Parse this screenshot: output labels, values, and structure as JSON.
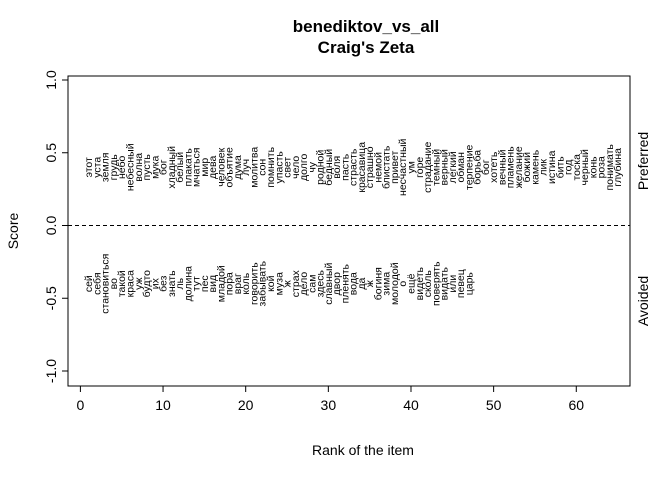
{
  "chart_data": {
    "type": "scatter",
    "title": "benediktov_vs_all",
    "subtitle": "Craig's Zeta",
    "xlabel": "Rank of the item",
    "ylabel": "Score",
    "xlim": [
      -1.5,
      66.5
    ],
    "ylim": [
      -1.0,
      1.0
    ],
    "x_ticks": [
      0,
      10,
      20,
      30,
      40,
      50,
      60
    ],
    "y_ticks": [
      -1.0,
      -0.5,
      0.0,
      0.5,
      1.0
    ],
    "x_tick_labels": [
      "0",
      "10",
      "20",
      "30",
      "40",
      "50",
      "60"
    ],
    "y_tick_labels": [
      "-1.0",
      "-0.5",
      "0.0",
      "0.5",
      "1.0"
    ],
    "reference_line": {
      "y": 0.0,
      "style": "dashed"
    },
    "right_axis_labels": {
      "top": "Preferred",
      "bottom": "Avoided"
    },
    "grid": false,
    "series": [
      {
        "name": "Preferred",
        "points": [
          {
            "x": 1,
            "y": 0.4,
            "label": "этот"
          },
          {
            "x": 2,
            "y": 0.4,
            "label": "уста"
          },
          {
            "x": 3,
            "y": 0.4,
            "label": "земля"
          },
          {
            "x": 4,
            "y": 0.4,
            "label": "грудь"
          },
          {
            "x": 5,
            "y": 0.4,
            "label": "небо"
          },
          {
            "x": 6,
            "y": 0.4,
            "label": "небесный"
          },
          {
            "x": 7,
            "y": 0.4,
            "label": "волна"
          },
          {
            "x": 8,
            "y": 0.4,
            "label": "пусть"
          },
          {
            "x": 9,
            "y": 0.4,
            "label": "мука"
          },
          {
            "x": 10,
            "y": 0.4,
            "label": "бог"
          },
          {
            "x": 11,
            "y": 0.4,
            "label": "хладный"
          },
          {
            "x": 12,
            "y": 0.4,
            "label": "белый"
          },
          {
            "x": 13,
            "y": 0.4,
            "label": "плакать"
          },
          {
            "x": 14,
            "y": 0.4,
            "label": "мчаться"
          },
          {
            "x": 15,
            "y": 0.4,
            "label": "мир"
          },
          {
            "x": 16,
            "y": 0.4,
            "label": "дева"
          },
          {
            "x": 17,
            "y": 0.4,
            "label": "человек"
          },
          {
            "x": 18,
            "y": 0.4,
            "label": "объятие"
          },
          {
            "x": 19,
            "y": 0.4,
            "label": "дума"
          },
          {
            "x": 20,
            "y": 0.4,
            "label": "луч"
          },
          {
            "x": 21,
            "y": 0.4,
            "label": "молитва"
          },
          {
            "x": 22,
            "y": 0.4,
            "label": "сон"
          },
          {
            "x": 23,
            "y": 0.4,
            "label": "помнить"
          },
          {
            "x": 24,
            "y": 0.4,
            "label": "упасть"
          },
          {
            "x": 25,
            "y": 0.4,
            "label": "свет"
          },
          {
            "x": 26,
            "y": 0.4,
            "label": "чело"
          },
          {
            "x": 27,
            "y": 0.4,
            "label": "долго"
          },
          {
            "x": 28,
            "y": 0.4,
            "label": "чу"
          },
          {
            "x": 29,
            "y": 0.4,
            "label": "родной"
          },
          {
            "x": 30,
            "y": 0.4,
            "label": "бедный"
          },
          {
            "x": 31,
            "y": 0.4,
            "label": "воля"
          },
          {
            "x": 32,
            "y": 0.4,
            "label": "пасть"
          },
          {
            "x": 33,
            "y": 0.4,
            "label": "страсть"
          },
          {
            "x": 34,
            "y": 0.4,
            "label": "красавица"
          },
          {
            "x": 35,
            "y": 0.4,
            "label": "страшно"
          },
          {
            "x": 36,
            "y": 0.4,
            "label": "немой"
          },
          {
            "x": 37,
            "y": 0.4,
            "label": "блистать"
          },
          {
            "x": 38,
            "y": 0.4,
            "label": "привет"
          },
          {
            "x": 39,
            "y": 0.4,
            "label": "несчастный"
          },
          {
            "x": 40,
            "y": 0.4,
            "label": "ум"
          },
          {
            "x": 41,
            "y": 0.4,
            "label": "горе"
          },
          {
            "x": 42,
            "y": 0.4,
            "label": "страдание"
          },
          {
            "x": 43,
            "y": 0.4,
            "label": "темный"
          },
          {
            "x": 44,
            "y": 0.4,
            "label": "верный"
          },
          {
            "x": 45,
            "y": 0.4,
            "label": "легкий"
          },
          {
            "x": 46,
            "y": 0.4,
            "label": "обман"
          },
          {
            "x": 47,
            "y": 0.4,
            "label": "терпение"
          },
          {
            "x": 48,
            "y": 0.4,
            "label": "борьба"
          },
          {
            "x": 49,
            "y": 0.4,
            "label": "бог"
          },
          {
            "x": 50,
            "y": 0.4,
            "label": "хотеть"
          },
          {
            "x": 51,
            "y": 0.4,
            "label": "вечный"
          },
          {
            "x": 52,
            "y": 0.4,
            "label": "пламень"
          },
          {
            "x": 53,
            "y": 0.4,
            "label": "желание"
          },
          {
            "x": 54,
            "y": 0.4,
            "label": "божий"
          },
          {
            "x": 55,
            "y": 0.4,
            "label": "камень"
          },
          {
            "x": 56,
            "y": 0.4,
            "label": "лик"
          },
          {
            "x": 57,
            "y": 0.4,
            "label": "истина"
          },
          {
            "x": 58,
            "y": 0.4,
            "label": "бить"
          },
          {
            "x": 59,
            "y": 0.4,
            "label": "год"
          },
          {
            "x": 60,
            "y": 0.4,
            "label": "тоска"
          },
          {
            "x": 61,
            "y": 0.4,
            "label": "черный"
          },
          {
            "x": 62,
            "y": 0.4,
            "label": "конь"
          },
          {
            "x": 63,
            "y": 0.4,
            "label": "роза"
          },
          {
            "x": 64,
            "y": 0.4,
            "label": "понимать"
          },
          {
            "x": 65,
            "y": 0.4,
            "label": "глубина"
          }
        ]
      },
      {
        "name": "Avoided",
        "points": [
          {
            "x": 1,
            "y": -0.4,
            "label": "сей"
          },
          {
            "x": 2,
            "y": -0.4,
            "label": "себя"
          },
          {
            "x": 3,
            "y": -0.4,
            "label": "становиться"
          },
          {
            "x": 4,
            "y": -0.4,
            "label": "во"
          },
          {
            "x": 5,
            "y": -0.4,
            "label": "такой"
          },
          {
            "x": 6,
            "y": -0.4,
            "label": "краса"
          },
          {
            "x": 7,
            "y": -0.4,
            "label": "уж"
          },
          {
            "x": 8,
            "y": -0.4,
            "label": "будто"
          },
          {
            "x": 9,
            "y": -0.4,
            "label": "их"
          },
          {
            "x": 10,
            "y": -0.4,
            "label": "без"
          },
          {
            "x": 11,
            "y": -0.4,
            "label": "знать"
          },
          {
            "x": 12,
            "y": -0.4,
            "label": "ль"
          },
          {
            "x": 13,
            "y": -0.4,
            "label": "долина"
          },
          {
            "x": 14,
            "y": -0.4,
            "label": "тут"
          },
          {
            "x": 15,
            "y": -0.4,
            "label": "пес"
          },
          {
            "x": 16,
            "y": -0.4,
            "label": "вид"
          },
          {
            "x": 17,
            "y": -0.4,
            "label": "младой"
          },
          {
            "x": 18,
            "y": -0.4,
            "label": "пора"
          },
          {
            "x": 19,
            "y": -0.4,
            "label": "враг"
          },
          {
            "x": 20,
            "y": -0.4,
            "label": "коль"
          },
          {
            "x": 21,
            "y": -0.4,
            "label": "говорить"
          },
          {
            "x": 22,
            "y": -0.4,
            "label": "забывать"
          },
          {
            "x": 23,
            "y": -0.4,
            "label": "кой"
          },
          {
            "x": 24,
            "y": -0.4,
            "label": "муза"
          },
          {
            "x": 25,
            "y": -0.4,
            "label": "ж"
          },
          {
            "x": 26,
            "y": -0.4,
            "label": "страх"
          },
          {
            "x": 27,
            "y": -0.4,
            "label": "дело"
          },
          {
            "x": 28,
            "y": -0.4,
            "label": "сам"
          },
          {
            "x": 29,
            "y": -0.4,
            "label": "здесь"
          },
          {
            "x": 30,
            "y": -0.4,
            "label": "славный"
          },
          {
            "x": 31,
            "y": -0.4,
            "label": "двор"
          },
          {
            "x": 32,
            "y": -0.4,
            "label": "пленять"
          },
          {
            "x": 33,
            "y": -0.4,
            "label": "вода"
          },
          {
            "x": 34,
            "y": -0.4,
            "label": "да"
          },
          {
            "x": 35,
            "y": -0.4,
            "label": "ж"
          },
          {
            "x": 36,
            "y": -0.4,
            "label": "богиня"
          },
          {
            "x": 37,
            "y": -0.4,
            "label": "зима"
          },
          {
            "x": 38,
            "y": -0.4,
            "label": "молодой"
          },
          {
            "x": 39,
            "y": -0.4,
            "label": "о"
          },
          {
            "x": 40,
            "y": -0.4,
            "label": "ещё"
          },
          {
            "x": 41,
            "y": -0.4,
            "label": "видеть"
          },
          {
            "x": 42,
            "y": -0.4,
            "label": "сколь"
          },
          {
            "x": 43,
            "y": -0.4,
            "label": "поверять"
          },
          {
            "x": 44,
            "y": -0.4,
            "label": "видать"
          },
          {
            "x": 45,
            "y": -0.4,
            "label": "или"
          },
          {
            "x": 46,
            "y": -0.4,
            "label": "певец"
          },
          {
            "x": 47,
            "y": -0.4,
            "label": "царь"
          }
        ]
      }
    ]
  }
}
